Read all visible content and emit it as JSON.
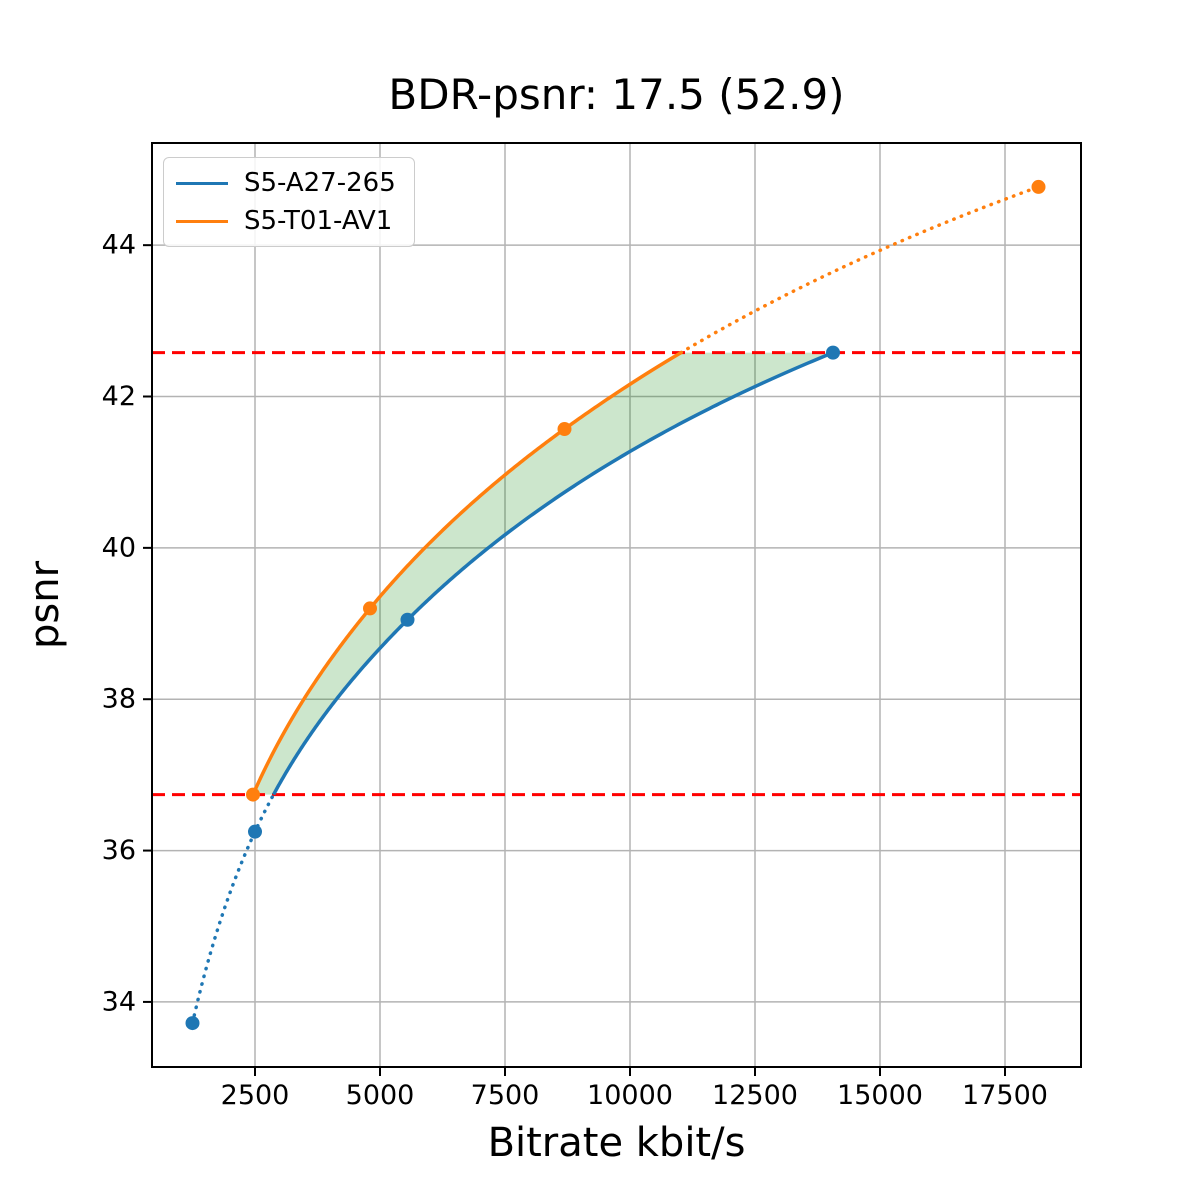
{
  "figure": {
    "title": "BDR-psnr: 17.5 (52.9)",
    "xlabel": "Bitrate kbit/s",
    "ylabel": "psnr"
  },
  "chart_data": {
    "type": "line",
    "title": "BDR-psnr: 17.5 (52.9)",
    "xlabel": "Bitrate kbit/s",
    "ylabel": "psnr",
    "xlim": [
      440,
      19020
    ],
    "ylim": [
      33.14,
      45.35
    ],
    "x_ticks": [
      2500,
      5000,
      7500,
      10000,
      12500,
      15000,
      17500
    ],
    "y_ticks": [
      34,
      36,
      38,
      40,
      42,
      44
    ],
    "grid": true,
    "grid_color": "#b3b3b3",
    "legend_position": "upper left",
    "interpolation": "pchip-log-x",
    "series": [
      {
        "name": "S5-A27-265",
        "color": "#1f77b4",
        "points": [
          [
            1250,
            33.72
          ],
          [
            2500,
            36.25
          ],
          [
            5550,
            39.05
          ],
          [
            14060,
            42.58
          ]
        ]
      },
      {
        "name": "S5-T01-AV1",
        "color": "#ff7f0e",
        "points": [
          [
            2460,
            36.74
          ],
          [
            4800,
            39.2
          ],
          [
            8690,
            41.57
          ],
          [
            18170,
            44.77
          ]
        ]
      }
    ],
    "reference_lines": {
      "color": "#ff0000",
      "style": "dashed",
      "values": [
        36.74,
        42.58
      ]
    },
    "shaded_region": {
      "color": "#008000",
      "opacity": 0.2,
      "between": "curves",
      "y_range": [
        36.74,
        42.58
      ]
    },
    "solid_y_range": [
      36.74,
      42.58
    ],
    "extrapolation_style": "dotted"
  }
}
